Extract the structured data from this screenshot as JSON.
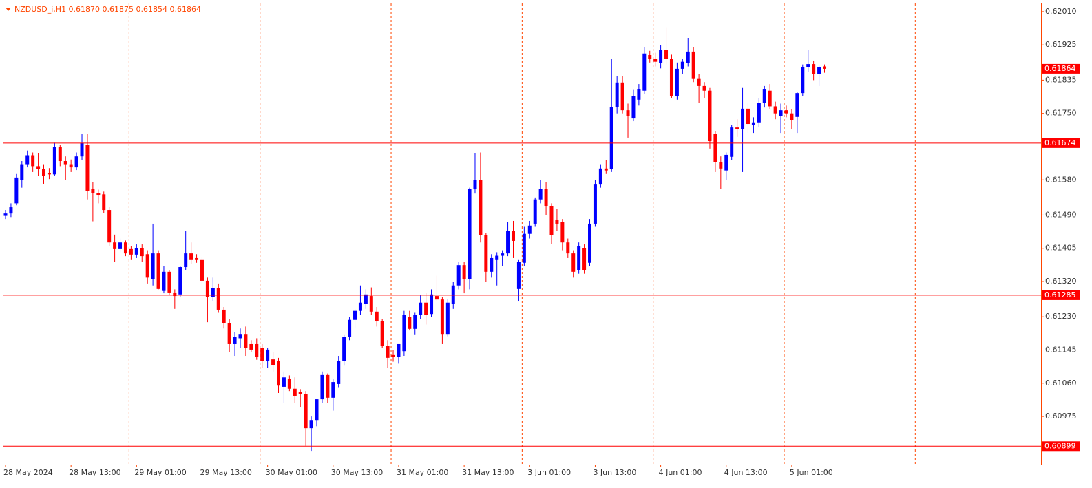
{
  "chart_data": {
    "type": "candlestick",
    "title": "NZDUSD_i,H1  0.61870 0.61875 0.61854 0.61864",
    "categories": [
      "28 May 2024",
      null,
      null,
      null,
      null,
      null,
      null,
      null,
      null,
      null,
      null,
      null,
      "28 May 13:00",
      null,
      null,
      null,
      null,
      null,
      null,
      null,
      null,
      null,
      null,
      null,
      "29 May 01:00",
      null,
      null,
      null,
      null,
      null,
      null,
      null,
      null,
      null,
      null,
      null,
      "29 May 13:00",
      null,
      null,
      null,
      null,
      null,
      null,
      null,
      null,
      null,
      null,
      null,
      "30 May 01:00",
      null,
      null,
      null,
      null,
      null,
      null,
      null,
      null,
      null,
      null,
      null,
      "30 May 13:00",
      null,
      null,
      null,
      null,
      null,
      null,
      null,
      null,
      null,
      null,
      null,
      "31 May 01:00",
      null,
      null,
      null,
      null,
      null,
      null,
      null,
      null,
      null,
      null,
      null,
      "31 May 13:00",
      null,
      null,
      null,
      null,
      null,
      null,
      null,
      null,
      null,
      null,
      null,
      "3 Jun 01:00",
      null,
      null,
      null,
      null,
      null,
      null,
      null,
      null,
      null,
      null,
      null,
      "3 Jun 13:00",
      null,
      null,
      null,
      null,
      null,
      null,
      null,
      null,
      null,
      null,
      null,
      "4 Jun 01:00",
      null,
      null,
      null,
      null,
      null,
      null,
      null,
      null,
      null,
      null,
      null,
      "4 Jun 13:00",
      null,
      null,
      null,
      null,
      null,
      null,
      null,
      null,
      null,
      null,
      null,
      "5 Jun 01:00",
      null,
      null,
      null,
      null,
      null,
      null
    ],
    "ohlc": [
      [
        0.61488,
        0.61503,
        0.6148,
        0.61494
      ],
      [
        0.61494,
        0.6152,
        0.61485,
        0.6151
      ],
      [
        0.6152,
        0.61595,
        0.61515,
        0.61586
      ],
      [
        0.6158,
        0.61628,
        0.6156,
        0.6162
      ],
      [
        0.6162,
        0.61655,
        0.61612,
        0.61643
      ],
      [
        0.61643,
        0.6165,
        0.616,
        0.61615
      ],
      [
        0.61615,
        0.61648,
        0.6159,
        0.61607
      ],
      [
        0.61607,
        0.6162,
        0.6157,
        0.6159
      ],
      [
        0.61597,
        0.6161,
        0.61582,
        0.61594
      ],
      [
        0.61594,
        0.61675,
        0.6159,
        0.61664
      ],
      [
        0.61664,
        0.6167,
        0.61615,
        0.61628
      ],
      [
        0.61628,
        0.6164,
        0.6158,
        0.6162
      ],
      [
        0.6162,
        0.61632,
        0.616,
        0.61612
      ],
      [
        0.61612,
        0.6165,
        0.61605,
        0.6164
      ],
      [
        0.6164,
        0.61697,
        0.6163,
        0.61674
      ],
      [
        0.6167,
        0.61697,
        0.6153,
        0.61551
      ],
      [
        0.61556,
        0.61575,
        0.61474,
        0.61547
      ],
      [
        0.61547,
        0.61555,
        0.6152,
        0.6154
      ],
      [
        0.61543,
        0.6155,
        0.61495,
        0.61503
      ],
      [
        0.61503,
        0.6151,
        0.6141,
        0.6142
      ],
      [
        0.6142,
        0.6144,
        0.61371,
        0.61403
      ],
      [
        0.61403,
        0.6143,
        0.61395,
        0.6142
      ],
      [
        0.6142,
        0.61425,
        0.61385,
        0.61392
      ],
      [
        0.61403,
        0.6141,
        0.61375,
        0.61389
      ],
      [
        0.61389,
        0.61415,
        0.6138,
        0.61406
      ],
      [
        0.61406,
        0.61415,
        0.6137,
        0.61385
      ],
      [
        0.6139,
        0.614,
        0.61315,
        0.6133
      ],
      [
        0.61327,
        0.61468,
        0.6131,
        0.61392
      ],
      [
        0.61392,
        0.614,
        0.613,
        0.61301
      ],
      [
        0.61296,
        0.6136,
        0.6129,
        0.61345
      ],
      [
        0.61345,
        0.6135,
        0.61285,
        0.61292
      ],
      [
        0.61292,
        0.613,
        0.6125,
        0.61283
      ],
      [
        0.61287,
        0.6136,
        0.6128,
        0.61357
      ],
      [
        0.61357,
        0.6145,
        0.6135,
        0.61392
      ],
      [
        0.61392,
        0.6142,
        0.61365,
        0.61375
      ],
      [
        0.6138,
        0.6139,
        0.61368,
        0.61375
      ],
      [
        0.61375,
        0.61382,
        0.61315,
        0.61322
      ],
      [
        0.61322,
        0.6133,
        0.61216,
        0.6128
      ],
      [
        0.6128,
        0.6133,
        0.6127,
        0.61304
      ],
      [
        0.61304,
        0.61315,
        0.6124,
        0.61248
      ],
      [
        0.61248,
        0.61255,
        0.612,
        0.61213
      ],
      [
        0.61213,
        0.61225,
        0.61139,
        0.6116
      ],
      [
        0.6116,
        0.6119,
        0.6113,
        0.61178
      ],
      [
        0.61175,
        0.612,
        0.6115,
        0.61186
      ],
      [
        0.61186,
        0.61205,
        0.6113,
        0.61151
      ],
      [
        0.6116,
        0.6117,
        0.6114,
        0.61146
      ],
      [
        0.6116,
        0.61175,
        0.6112,
        0.61128
      ],
      [
        0.61151,
        0.6116,
        0.611,
        0.61116
      ],
      [
        0.61116,
        0.6115,
        0.611,
        0.61146
      ],
      [
        0.61121,
        0.6114,
        0.6109,
        0.61107
      ],
      [
        0.61116,
        0.61125,
        0.61035,
        0.61054
      ],
      [
        0.61051,
        0.6109,
        0.6101,
        0.61075
      ],
      [
        0.61072,
        0.6108,
        0.6104,
        0.61046
      ],
      [
        0.61046,
        0.61075,
        0.6101,
        0.61028
      ],
      [
        0.61037,
        0.61045,
        0.60998,
        0.61033
      ],
      [
        0.61033,
        0.6104,
        0.609,
        0.60945
      ],
      [
        0.60945,
        0.60975,
        0.60887,
        0.60966
      ],
      [
        0.60966,
        0.6102,
        0.6095,
        0.61019
      ],
      [
        0.61019,
        0.6109,
        0.6101,
        0.61081
      ],
      [
        0.61081,
        0.61085,
        0.6101,
        0.61023
      ],
      [
        0.61023,
        0.6107,
        0.6099,
        0.61063
      ],
      [
        0.61058,
        0.6113,
        0.6105,
        0.61116
      ],
      [
        0.61116,
        0.61185,
        0.61105,
        0.61178
      ],
      [
        0.61178,
        0.6123,
        0.6117,
        0.61222
      ],
      [
        0.61222,
        0.6125,
        0.612,
        0.61245
      ],
      [
        0.61245,
        0.6131,
        0.61235,
        0.61266
      ],
      [
        0.61262,
        0.613,
        0.6125,
        0.61287
      ],
      [
        0.61283,
        0.61305,
        0.61235,
        0.61243
      ],
      [
        0.61243,
        0.61255,
        0.61205,
        0.61218
      ],
      [
        0.61218,
        0.61225,
        0.6115,
        0.61156
      ],
      [
        0.61156,
        0.6117,
        0.611,
        0.61125
      ],
      [
        0.61132,
        0.61145,
        0.61115,
        0.61128
      ],
      [
        0.61128,
        0.6116,
        0.6111,
        0.6116
      ],
      [
        0.61142,
        0.61245,
        0.6113,
        0.61234
      ],
      [
        0.6123,
        0.61245,
        0.61195,
        0.61199
      ],
      [
        0.61199,
        0.6124,
        0.61185,
        0.61234
      ],
      [
        0.61234,
        0.61285,
        0.61225,
        0.61266
      ],
      [
        0.61266,
        0.6129,
        0.6121,
        0.61234
      ],
      [
        0.61237,
        0.613,
        0.6123,
        0.61287
      ],
      [
        0.61283,
        0.61335,
        0.6127,
        0.61274
      ],
      [
        0.61274,
        0.6128,
        0.6116,
        0.61186
      ],
      [
        0.61186,
        0.61275,
        0.6118,
        0.61266
      ],
      [
        0.61262,
        0.6132,
        0.6125,
        0.6131
      ],
      [
        0.6131,
        0.6137,
        0.613,
        0.61362
      ],
      [
        0.61362,
        0.6137,
        0.6129,
        0.61327
      ],
      [
        0.61327,
        0.6156,
        0.613,
        0.61556
      ],
      [
        0.61556,
        0.61649,
        0.61545,
        0.61579
      ],
      [
        0.61579,
        0.6165,
        0.6142,
        0.61438
      ],
      [
        0.61438,
        0.61445,
        0.6132,
        0.61345
      ],
      [
        0.61345,
        0.6139,
        0.6133,
        0.6138
      ],
      [
        0.61375,
        0.61395,
        0.6131,
        0.61386
      ],
      [
        0.61386,
        0.614,
        0.6136,
        0.61392
      ],
      [
        0.61392,
        0.61472,
        0.61385,
        0.6145
      ],
      [
        0.6145,
        0.61475,
        0.6138,
        0.61424
      ],
      [
        0.61301,
        0.61375,
        0.61269,
        0.61371
      ],
      [
        0.61368,
        0.6146,
        0.6136,
        0.61442
      ],
      [
        0.61442,
        0.61475,
        0.6143,
        0.61463
      ],
      [
        0.61468,
        0.61535,
        0.6146,
        0.6153
      ],
      [
        0.6153,
        0.6158,
        0.6152,
        0.61556
      ],
      [
        0.61556,
        0.61575,
        0.6149,
        0.61512
      ],
      [
        0.61512,
        0.6152,
        0.61415,
        0.61438
      ],
      [
        0.61477,
        0.61505,
        0.6145,
        0.61468
      ],
      [
        0.61472,
        0.6148,
        0.614,
        0.6142
      ],
      [
        0.6142,
        0.6143,
        0.6138,
        0.61392
      ],
      [
        0.61392,
        0.614,
        0.6133,
        0.61345
      ],
      [
        0.6135,
        0.6142,
        0.6134,
        0.6141
      ],
      [
        0.61406,
        0.61415,
        0.6134,
        0.6135
      ],
      [
        0.61368,
        0.6148,
        0.6136,
        0.61468
      ],
      [
        0.61468,
        0.6158,
        0.6146,
        0.61568
      ],
      [
        0.61568,
        0.6162,
        0.6156,
        0.61609
      ],
      [
        0.61609,
        0.6163,
        0.61595,
        0.61604
      ],
      [
        0.61607,
        0.6189,
        0.616,
        0.61767
      ],
      [
        0.61767,
        0.61845,
        0.6175,
        0.61829
      ],
      [
        0.61829,
        0.61846,
        0.6175,
        0.61758
      ],
      [
        0.61758,
        0.61775,
        0.61688,
        0.61744
      ],
      [
        0.61737,
        0.6181,
        0.6173,
        0.61794
      ],
      [
        0.61785,
        0.61825,
        0.6177,
        0.61811
      ],
      [
        0.61808,
        0.6192,
        0.618,
        0.61903
      ],
      [
        0.61899,
        0.6191,
        0.6188,
        0.6189
      ],
      [
        0.6189,
        0.61905,
        0.6187,
        0.61882
      ],
      [
        0.61878,
        0.61925,
        0.61865,
        0.61912
      ],
      [
        0.61912,
        0.6197,
        0.61875,
        0.6189
      ],
      [
        0.6189,
        0.619,
        0.6179,
        0.61794
      ],
      [
        0.61794,
        0.6188,
        0.61785,
        0.61864
      ],
      [
        0.61864,
        0.6189,
        0.6185,
        0.61882
      ],
      [
        0.61878,
        0.61943,
        0.6187,
        0.61908
      ],
      [
        0.61908,
        0.6192,
        0.6183,
        0.61838
      ],
      [
        0.61838,
        0.6185,
        0.61776,
        0.6182
      ],
      [
        0.6182,
        0.6183,
        0.6179,
        0.61808
      ],
      [
        0.61808,
        0.61815,
        0.6166,
        0.61679
      ],
      [
        0.61697,
        0.61705,
        0.616,
        0.61626
      ],
      [
        0.61626,
        0.6164,
        0.61556,
        0.61609
      ],
      [
        0.61604,
        0.6165,
        0.6158,
        0.61644
      ],
      [
        0.61639,
        0.6172,
        0.6163,
        0.61714
      ],
      [
        0.61714,
        0.61735,
        0.6169,
        0.61709
      ],
      [
        0.61709,
        0.61815,
        0.616,
        0.61762
      ],
      [
        0.61762,
        0.61775,
        0.617,
        0.61723
      ],
      [
        0.6172,
        0.6174,
        0.617,
        0.61727
      ],
      [
        0.61727,
        0.6179,
        0.61715,
        0.61776
      ],
      [
        0.61776,
        0.6182,
        0.61765,
        0.61811
      ],
      [
        0.61808,
        0.61825,
        0.6176,
        0.61768
      ],
      [
        0.61768,
        0.6178,
        0.61735,
        0.6175
      ],
      [
        0.61744,
        0.61775,
        0.617,
        0.61758
      ],
      [
        0.61758,
        0.6177,
        0.6174,
        0.6175
      ],
      [
        0.6175,
        0.6176,
        0.6171,
        0.61732
      ],
      [
        0.61741,
        0.61805,
        0.617,
        0.61802
      ],
      [
        0.61802,
        0.61875,
        0.61795,
        0.61869
      ],
      [
        0.61869,
        0.61912,
        0.61855,
        0.61876
      ],
      [
        0.61876,
        0.61885,
        0.61835,
        0.6185
      ],
      [
        0.6185,
        0.61872,
        0.6182,
        0.61869
      ],
      [
        0.6187,
        0.61875,
        0.61854,
        0.61864
      ]
    ],
    "ylim": [
      0.60852,
      0.62031
    ],
    "yticks": [
      {
        "value": 0.6201,
        "label": "0.62010"
      },
      0.61925,
      0.61835,
      {
        "value": 0.6175,
        "label": "0.61750"
      },
      {
        "value": 0.6158,
        "label": "0.61580"
      },
      {
        "value": 0.6149,
        "label": "0.61490"
      },
      0.61405,
      {
        "value": 0.6132,
        "label": "0.61320"
      },
      {
        "value": 0.6123,
        "label": "0.61230"
      },
      0.61145,
      {
        "value": 0.6106,
        "label": "0.61060"
      },
      0.60975
    ],
    "levels": [
      0.61674,
      0.61285,
      0.60899
    ],
    "current_price": 0.61864,
    "grid": true,
    "colors": {
      "up": "#0000ff",
      "down": "#ff0000",
      "grid": "#ff4500",
      "level": "#ff0000"
    }
  }
}
